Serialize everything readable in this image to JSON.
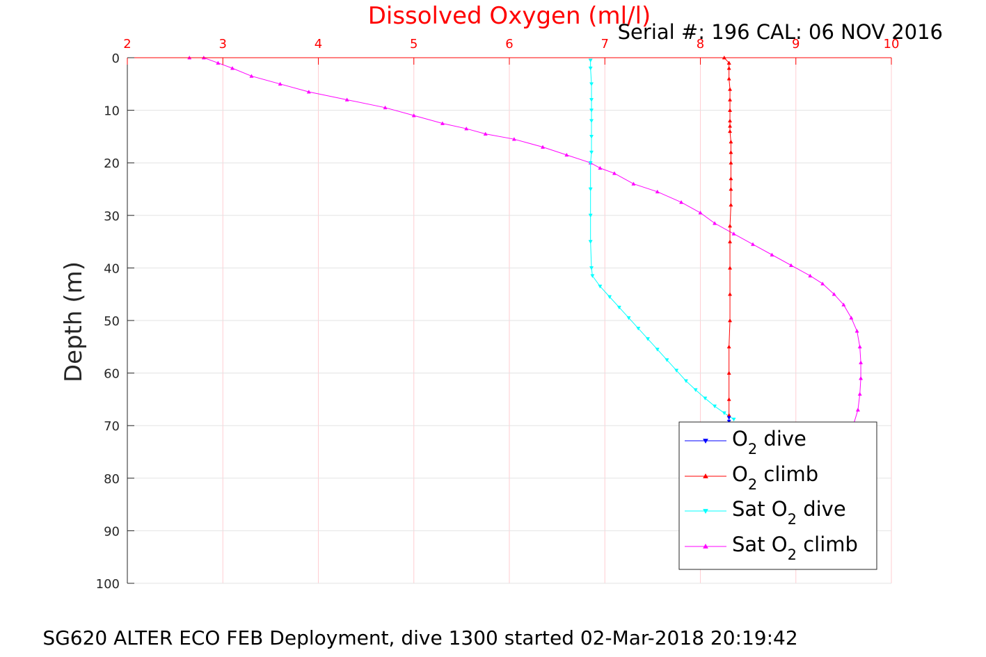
{
  "chart_data": {
    "type": "line",
    "title": "Dissolved Oxygen (ml/l)",
    "serial_label": "Serial #: 196  CAL: 06 NOV 2016",
    "footer": "SG620 ALTER ECO FEB Deployment, dive 1300 started 02-Mar-2018 20:19:42",
    "xlabel": "Dissolved Oxygen (ml/l)",
    "ylabel": "Depth (m)",
    "xlim": [
      2,
      10
    ],
    "ylim": [
      0,
      100
    ],
    "y_reversed": true,
    "x_axis_position": "top",
    "grid": true,
    "x_ticks": [
      "2",
      "3",
      "4",
      "5",
      "6",
      "7",
      "8",
      "9",
      "10"
    ],
    "y_ticks": [
      "0",
      "10",
      "20",
      "30",
      "40",
      "50",
      "60",
      "70",
      "80",
      "90",
      "100"
    ],
    "legend_position": "bottom-right",
    "series": [
      {
        "name": "O2 dive",
        "legend": {
          "main": "O",
          "sub": "2",
          "rest": " dive"
        },
        "color": "#0000ff",
        "marker": "triangle-down",
        "x": [
          8.3,
          8.3
        ],
        "y": [
          68.5,
          69.2
        ]
      },
      {
        "name": "O2 climb",
        "legend": {
          "main": "O",
          "sub": "2",
          "rest": " climb"
        },
        "color": "#ff0000",
        "marker": "triangle-up",
        "x": [
          8.3,
          8.3,
          8.3,
          8.3,
          8.31,
          8.31,
          8.31,
          8.31,
          8.31,
          8.32,
          8.32,
          8.32,
          8.32,
          8.32,
          8.32,
          8.31,
          8.31,
          8.31,
          8.31,
          8.31,
          8.31,
          8.3,
          8.3,
          8.3,
          8.25,
          8.3
        ],
        "y": [
          68,
          65,
          60,
          55,
          50,
          45,
          40,
          35,
          32,
          28,
          25,
          23,
          20,
          18,
          16,
          14,
          13,
          12,
          10,
          8,
          6,
          4,
          2,
          1,
          0,
          1
        ]
      },
      {
        "name": "Sat O2 dive",
        "legend": {
          "main": "Sat O",
          "sub": "2",
          "rest": " dive"
        },
        "color": "#00ffff",
        "marker": "triangle-down",
        "x": [
          6.85,
          6.85,
          6.86,
          6.86,
          6.86,
          6.86,
          6.86,
          6.86,
          6.85,
          6.85,
          6.85,
          6.85,
          6.86,
          6.87,
          6.95,
          7.05,
          7.15,
          7.25,
          7.35,
          7.45,
          7.55,
          7.65,
          7.75,
          7.85,
          7.95,
          8.05,
          8.15,
          8.25,
          8.35
        ],
        "y": [
          0.5,
          2,
          5,
          8,
          10,
          12,
          15,
          18,
          20,
          25,
          30,
          35,
          40,
          41.5,
          43.5,
          45.5,
          47.5,
          49.5,
          51.5,
          53.5,
          55.5,
          57.5,
          59.5,
          61.5,
          63.2,
          64.8,
          66.3,
          67.6,
          68.8
        ]
      },
      {
        "name": "Sat O2 climb",
        "legend": {
          "main": "Sat O",
          "sub": "2",
          "rest": " climb"
        },
        "color": "#ff00ff",
        "marker": "triangle-up",
        "x": [
          9.6,
          9.65,
          9.67,
          9.68,
          9.68,
          9.67,
          9.64,
          9.58,
          9.5,
          9.4,
          9.28,
          9.15,
          8.95,
          8.75,
          8.55,
          8.35,
          8.15,
          8.0,
          7.8,
          7.55,
          7.3,
          7.1,
          6.95,
          6.85,
          6.6,
          6.35,
          6.05,
          5.75,
          5.55,
          5.3,
          5.0,
          4.7,
          4.3,
          3.9,
          3.6,
          3.3,
          3.1,
          2.95,
          2.8,
          2.65
        ],
        "y": [
          70,
          67,
          64,
          61,
          58,
          55,
          52,
          49.5,
          47,
          45,
          43,
          41.5,
          39.5,
          37.5,
          35.5,
          33.5,
          31.5,
          29.5,
          27.5,
          25.5,
          24,
          22,
          21,
          20,
          18.5,
          17,
          15.5,
          14.5,
          13.5,
          12.5,
          11,
          9.5,
          8,
          6.5,
          5,
          3.5,
          2,
          1,
          0,
          0
        ]
      }
    ]
  }
}
